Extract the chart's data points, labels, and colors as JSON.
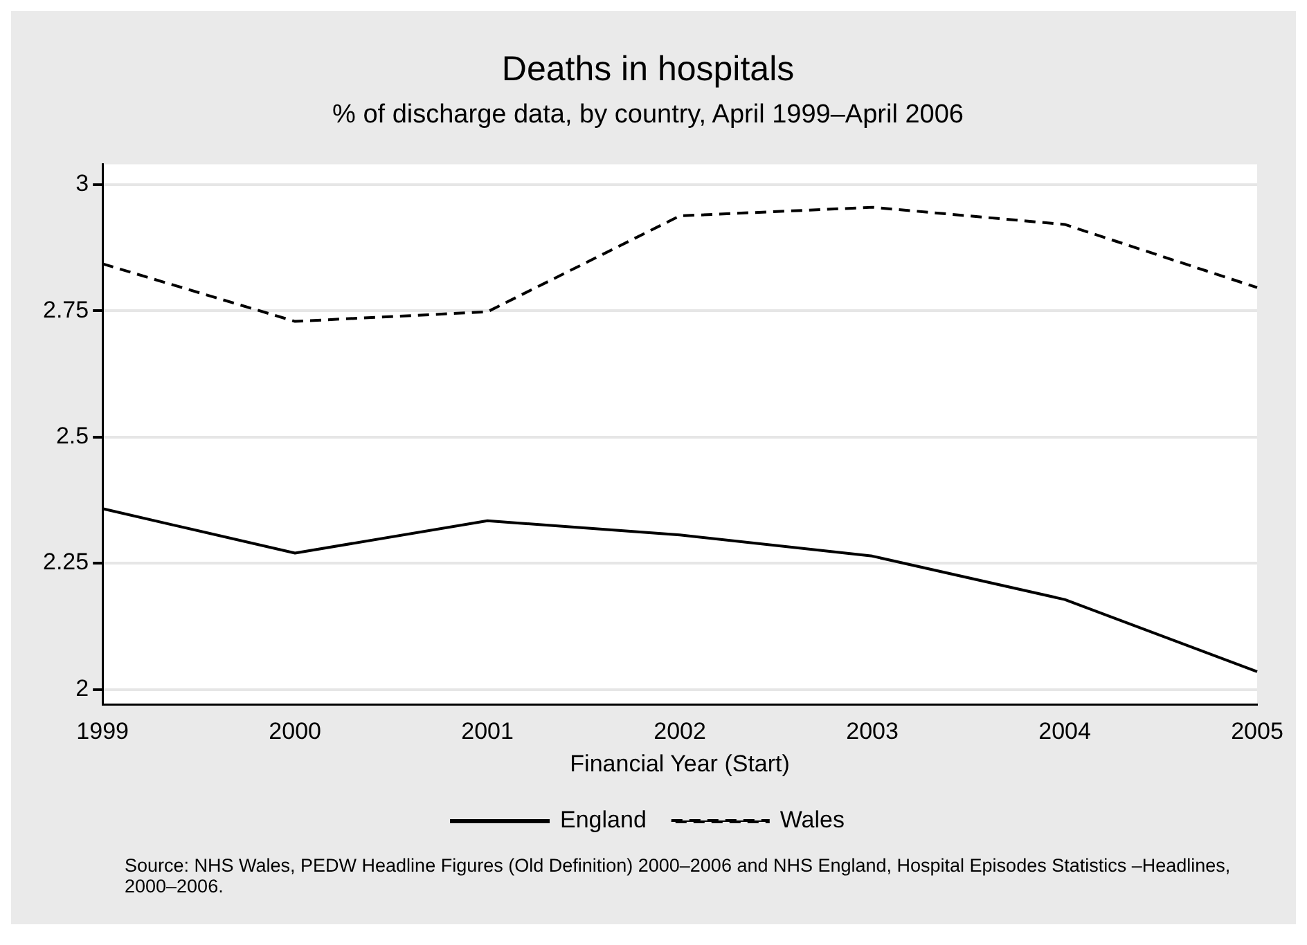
{
  "chart_data": {
    "type": "line",
    "title": "Deaths in hospitals",
    "subtitle": "% of discharge data, by country, April 1999–April 2006",
    "xlabel": "Financial Year (Start)",
    "categories": [
      "1999",
      "2000",
      "2001",
      "2002",
      "2003",
      "2004",
      "2005"
    ],
    "series": [
      {
        "name": "England",
        "color": "#000000",
        "line_style": "solid",
        "values": [
          2.358,
          2.27,
          2.334,
          2.306,
          2.264,
          2.178,
          2.035
        ]
      },
      {
        "name": "Wales",
        "color": "#000000",
        "line_style": "dashed",
        "values": [
          2.843,
          2.729,
          2.748,
          2.938,
          2.955,
          2.921,
          2.796
        ]
      }
    ],
    "ylim": [
      1.97,
      3.04
    ],
    "yticks": [
      2,
      2.25,
      2.5,
      2.75,
      3
    ],
    "grid": "y",
    "legend": "bottom",
    "marker": "none",
    "annotations": [
      "Source: NHS Wales, PEDW Headline Figures (Old Definition) 2000–2006 and NHS England, Hospital Episodes Statistics –Headlines, 2000–2006."
    ]
  }
}
